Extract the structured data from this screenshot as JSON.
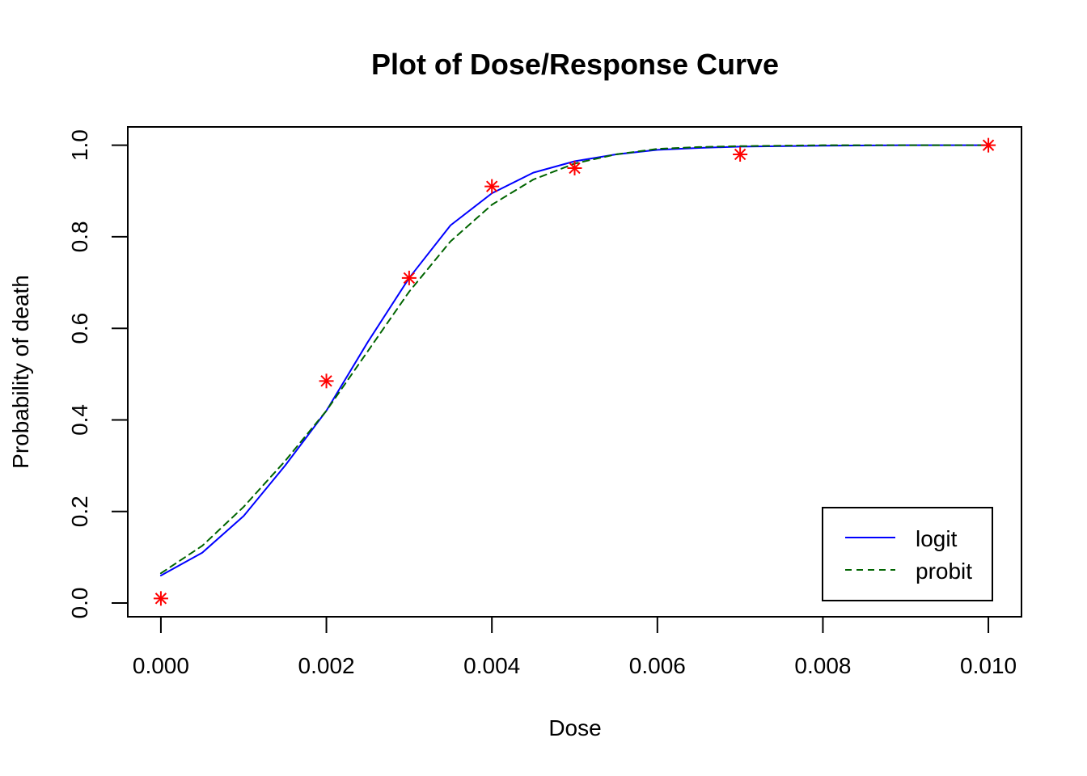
{
  "chart_data": {
    "type": "line",
    "title": "Plot of Dose/Response Curve",
    "xlabel": "Dose",
    "ylabel": "Probability of death",
    "xlim": [
      -0.0004,
      0.0104
    ],
    "ylim": [
      -0.03,
      1.04
    ],
    "x_ticks": [
      0.0,
      0.002,
      0.004,
      0.006,
      0.008,
      0.01
    ],
    "x_tick_labels": [
      "0.000",
      "0.002",
      "0.004",
      "0.006",
      "0.008",
      "0.010"
    ],
    "y_ticks": [
      0.0,
      0.2,
      0.4,
      0.6,
      0.8,
      1.0
    ],
    "y_tick_labels": [
      "0.0",
      "0.2",
      "0.4",
      "0.6",
      "0.8",
      "1.0"
    ],
    "grid": false,
    "legend_position": "bottom-right",
    "observed": {
      "marker": "asterisk",
      "color": "#ff0000",
      "x": [
        0.0,
        0.002,
        0.003,
        0.004,
        0.005,
        0.007,
        0.01
      ],
      "y": [
        0.01,
        0.485,
        0.71,
        0.91,
        0.95,
        0.98,
        1.0
      ]
    },
    "series": [
      {
        "name": "logit",
        "color": "#0000ff",
        "dash": "solid",
        "x": [
          0.0,
          0.0005,
          0.001,
          0.0015,
          0.002,
          0.0025,
          0.003,
          0.0035,
          0.004,
          0.0045,
          0.005,
          0.0055,
          0.006,
          0.0065,
          0.007,
          0.008,
          0.009,
          0.01
        ],
        "y": [
          0.06,
          0.11,
          0.19,
          0.3,
          0.42,
          0.57,
          0.71,
          0.825,
          0.895,
          0.94,
          0.965,
          0.98,
          0.99,
          0.994,
          0.997,
          0.999,
          1.0,
          1.0
        ]
      },
      {
        "name": "probit",
        "color": "#006400",
        "dash": "dashed",
        "x": [
          0.0,
          0.0005,
          0.001,
          0.0015,
          0.002,
          0.0025,
          0.003,
          0.0035,
          0.004,
          0.0045,
          0.005,
          0.0055,
          0.006,
          0.0065,
          0.007,
          0.008,
          0.009,
          0.01
        ],
        "y": [
          0.065,
          0.125,
          0.21,
          0.31,
          0.42,
          0.55,
          0.68,
          0.79,
          0.87,
          0.925,
          0.96,
          0.98,
          0.992,
          0.996,
          0.998,
          1.0,
          1.0,
          1.0
        ]
      }
    ]
  }
}
